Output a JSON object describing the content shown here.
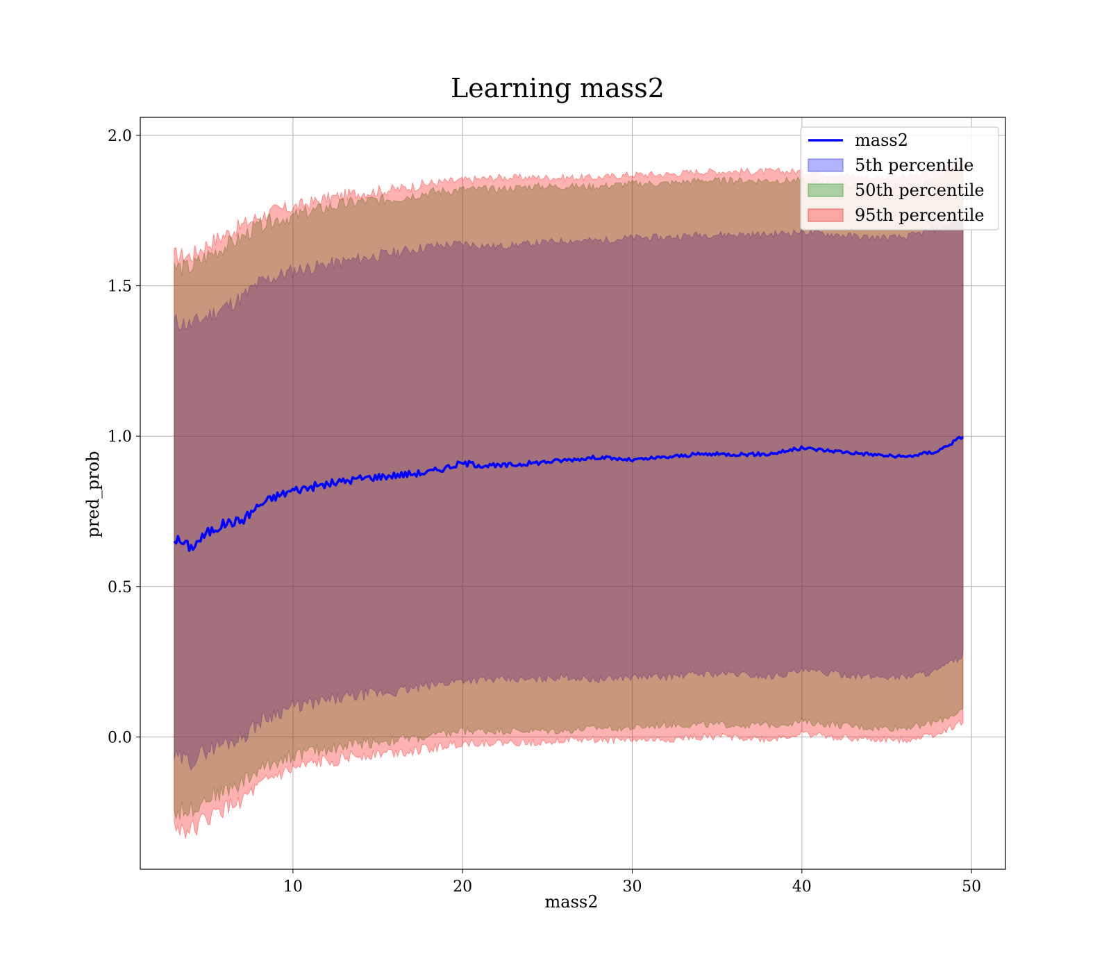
{
  "chart_data": {
    "type": "area",
    "title": "Learning mass2",
    "xlabel": "mass2",
    "ylabel": "pred_prob",
    "xlim": [
      1,
      52
    ],
    "ylim": [
      -0.44,
      2.06
    ],
    "xticks": [
      10,
      20,
      30,
      40,
      50
    ],
    "yticks": [
      0.0,
      0.5,
      1.0,
      1.5,
      2.0
    ],
    "xtick_labels": [
      "10",
      "20",
      "30",
      "40",
      "50"
    ],
    "ytick_labels": [
      "0.0",
      "0.5",
      "1.0",
      "1.5",
      "2.0"
    ],
    "grid": true,
    "legend_position": "top-right",
    "x": [
      3,
      4,
      5,
      6,
      7,
      8,
      9,
      10,
      12,
      14,
      16,
      18,
      20,
      22,
      24,
      26,
      28,
      30,
      32,
      34,
      36,
      38,
      40,
      42,
      44,
      46,
      48,
      49.5
    ],
    "line": {
      "name": "mass2",
      "color": "#0000ff",
      "values": [
        0.66,
        0.63,
        0.68,
        0.71,
        0.72,
        0.77,
        0.8,
        0.82,
        0.84,
        0.86,
        0.87,
        0.88,
        0.91,
        0.9,
        0.91,
        0.92,
        0.93,
        0.92,
        0.93,
        0.94,
        0.94,
        0.94,
        0.96,
        0.95,
        0.94,
        0.93,
        0.95,
        1.0
      ]
    },
    "bands": [
      {
        "name": "5th percentile",
        "color": "#0000ff",
        "opacity": 0.3,
        "lower": [
          -0.07,
          -0.08,
          -0.04,
          -0.02,
          0.0,
          0.05,
          0.08,
          0.1,
          0.12,
          0.14,
          0.15,
          0.17,
          0.19,
          0.19,
          0.19,
          0.2,
          0.19,
          0.2,
          0.2,
          0.21,
          0.21,
          0.2,
          0.22,
          0.21,
          0.2,
          0.2,
          0.22,
          0.27
        ],
        "upper": [
          1.38,
          1.37,
          1.4,
          1.43,
          1.46,
          1.51,
          1.53,
          1.55,
          1.57,
          1.59,
          1.61,
          1.63,
          1.64,
          1.63,
          1.64,
          1.65,
          1.65,
          1.66,
          1.66,
          1.67,
          1.67,
          1.67,
          1.68,
          1.67,
          1.66,
          1.66,
          1.69,
          1.72
        ]
      },
      {
        "name": "50th percentile",
        "color": "#008000",
        "opacity": 0.3,
        "lower": [
          -0.25,
          -0.24,
          -0.2,
          -0.18,
          -0.15,
          -0.11,
          -0.08,
          -0.06,
          -0.04,
          -0.02,
          -0.01,
          0.0,
          0.02,
          0.02,
          0.02,
          0.02,
          0.03,
          0.03,
          0.04,
          0.04,
          0.04,
          0.04,
          0.05,
          0.04,
          0.03,
          0.03,
          0.05,
          0.09
        ],
        "upper": [
          1.56,
          1.56,
          1.6,
          1.63,
          1.66,
          1.7,
          1.72,
          1.73,
          1.76,
          1.78,
          1.79,
          1.81,
          1.82,
          1.82,
          1.83,
          1.83,
          1.83,
          1.84,
          1.84,
          1.85,
          1.85,
          1.85,
          1.85,
          1.84,
          1.83,
          1.83,
          1.85,
          1.9
        ]
      },
      {
        "name": "95th percentile",
        "color": "#ff0000",
        "opacity": 0.3,
        "lower": [
          -0.3,
          -0.31,
          -0.27,
          -0.24,
          -0.21,
          -0.17,
          -0.13,
          -0.11,
          -0.08,
          -0.06,
          -0.05,
          -0.04,
          -0.02,
          -0.02,
          -0.02,
          -0.01,
          -0.01,
          -0.01,
          -0.01,
          0.0,
          0.0,
          -0.01,
          0.01,
          0.0,
          -0.01,
          -0.01,
          0.01,
          0.05
        ],
        "upper": [
          1.6,
          1.6,
          1.64,
          1.67,
          1.7,
          1.73,
          1.75,
          1.76,
          1.79,
          1.81,
          1.82,
          1.84,
          1.85,
          1.86,
          1.86,
          1.86,
          1.86,
          1.87,
          1.87,
          1.88,
          1.88,
          1.88,
          1.88,
          1.87,
          1.86,
          1.86,
          1.88,
          1.93
        ]
      }
    ],
    "legend": [
      "mass2",
      "5th percentile",
      "50th percentile",
      "95th percentile"
    ]
  }
}
